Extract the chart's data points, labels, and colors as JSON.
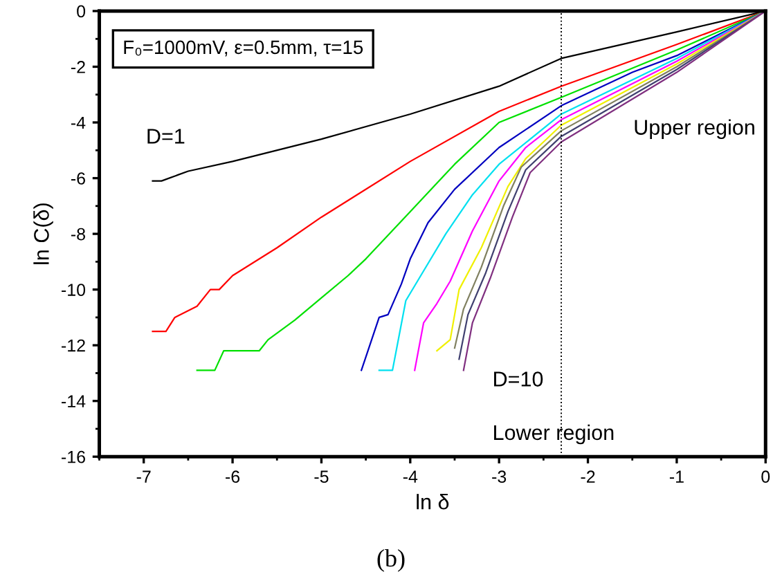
{
  "chart_data": {
    "type": "line",
    "xlabel": "ln δ",
    "ylabel": "ln C(δ)",
    "xlim": [
      -7.5,
      0
    ],
    "xticks": [
      -7,
      -6,
      -5,
      -4,
      -3,
      -2,
      -1,
      0
    ],
    "ylim": [
      -16,
      0
    ],
    "yticks": [
      -16,
      -14,
      -12,
      -10,
      -8,
      -6,
      -4,
      -2,
      0
    ],
    "grid": false,
    "legend": false,
    "marker": "none",
    "line_style": "solid",
    "series": [
      {
        "color": "#000000",
        "x": [
          -6.9,
          -6.8,
          -6.5,
          -6,
          -5,
          -4,
          -3,
          -2.3,
          -1,
          0
        ],
        "values": [
          -6.1,
          -6.1,
          -5.75,
          -5.4,
          -4.6,
          -3.7,
          -2.7,
          -1.7,
          -0.75,
          0
        ]
      },
      {
        "color": "#ff0000",
        "x": [
          -6.9,
          -6.75,
          -6.65,
          -6.4,
          -6.25,
          -6.15,
          -6,
          -5.5,
          -5,
          -4,
          -3,
          -2.3,
          -1,
          0
        ],
        "values": [
          -11.5,
          -11.5,
          -11,
          -10.6,
          -10,
          -10,
          -9.5,
          -8.5,
          -7.4,
          -5.4,
          -3.6,
          -2.7,
          -1.2,
          0
        ]
      },
      {
        "color": "#00e000",
        "x": [
          -6.4,
          -6.2,
          -6.1,
          -5.7,
          -5.6,
          -5.3,
          -5,
          -4.7,
          -4.5,
          -4,
          -3.5,
          -3,
          -2.3,
          -1,
          0
        ],
        "values": [
          -12.9,
          -12.9,
          -12.2,
          -12.2,
          -11.8,
          -11.1,
          -10.3,
          -9.5,
          -8.9,
          -7.2,
          -5.5,
          -4,
          -3.1,
          -1.4,
          0
        ]
      },
      {
        "color": "#0000c0",
        "x": [
          -4.55,
          -4.35,
          -4.25,
          -4.1,
          -4,
          -3.8,
          -3.5,
          -3,
          -2.3,
          -1.5,
          -1,
          0
        ],
        "values": [
          -12.9,
          -11,
          -10.9,
          -9.8,
          -8.9,
          -7.6,
          -6.4,
          -4.9,
          -3.4,
          -2.2,
          -1.6,
          0
        ]
      },
      {
        "color": "#00e0f0",
        "x": [
          -4.35,
          -4.2,
          -4.05,
          -3.9,
          -3.6,
          -3.3,
          -3,
          -2.3,
          -1,
          0
        ],
        "values": [
          -12.9,
          -12.9,
          -10.4,
          -9.6,
          -8,
          -6.6,
          -5.5,
          -3.7,
          -1.7,
          0
        ]
      },
      {
        "color": "#ff00ff",
        "x": [
          -3.95,
          -3.85,
          -3.7,
          -3.55,
          -3.3,
          -3,
          -2.7,
          -2.3,
          -1,
          0
        ],
        "values": [
          -12.9,
          -11.2,
          -10.5,
          -9.7,
          -7.9,
          -6.1,
          -4.9,
          -3.9,
          -1.8,
          0
        ]
      },
      {
        "color": "#f0f000",
        "x": [
          -3.7,
          -3.55,
          -3.45,
          -3.2,
          -2.9,
          -2.7,
          -2.3,
          -1,
          0
        ],
        "values": [
          -12.2,
          -11.8,
          -10,
          -8.5,
          -6.3,
          -5.3,
          -4.1,
          -1.9,
          0
        ]
      },
      {
        "color": "#808060",
        "x": [
          -3.5,
          -3.4,
          -3.2,
          -2.95,
          -2.75,
          -2.3,
          -1,
          0
        ],
        "values": [
          -12.1,
          -10.7,
          -9.2,
          -7,
          -5.6,
          -4.3,
          -2,
          0
        ]
      },
      {
        "color": "#404070",
        "x": [
          -3.45,
          -3.35,
          -3.15,
          -2.9,
          -2.7,
          -2.3,
          -1,
          0
        ],
        "values": [
          -12.5,
          -10.9,
          -9.4,
          -7.2,
          -5.7,
          -4.5,
          -2.1,
          0
        ]
      },
      {
        "color": "#803080",
        "x": [
          -3.4,
          -3.3,
          -3.1,
          -2.85,
          -2.65,
          -2.3,
          -1,
          0
        ],
        "values": [
          -12.9,
          -11.2,
          -9.6,
          -7.4,
          -5.8,
          -4.7,
          -2.2,
          0
        ]
      }
    ],
    "ref_lines": [
      {
        "axis": "x",
        "value": -2.3,
        "color": "#000000",
        "line_style": "dotted"
      }
    ],
    "annotations": [
      "F₀=1000mV, ε=0.5mm, τ=15",
      "D=1",
      "Upper region",
      "D=10",
      "Lower region",
      "(b)"
    ]
  }
}
